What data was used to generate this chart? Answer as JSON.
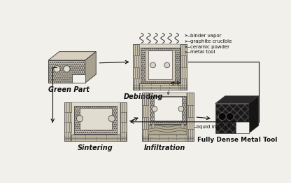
{
  "bg_color": "#f0ede8",
  "labels": {
    "green_part": "Green Part",
    "debinding": "Debinding",
    "sintering": "Sintering",
    "infiltration": "Infiltration",
    "fully_dense": "Fully Dense Metal Tool"
  },
  "annotations": {
    "binder_vapor": "binder vapor",
    "graphite_crucible": "graphite crucible",
    "ceramic_powder": "ceramic powder",
    "metal_tool": "metal tool",
    "stilt": "stilt",
    "liquid_infiltrant": "liquid infiltrant"
  },
  "colors": {
    "background": "#f2f0eb",
    "brick_fill": "#c8bfaa",
    "part_fill": "#c0b8a8",
    "dark_fill": "#111111",
    "inner_fill": "#d8d4c8",
    "tool_fill": "#b8b0a0",
    "white": "#f8f8f8",
    "arrow": "#111111",
    "text": "#111111",
    "gray_light": "#d0ccbe",
    "gray_mid": "#a8a090"
  }
}
